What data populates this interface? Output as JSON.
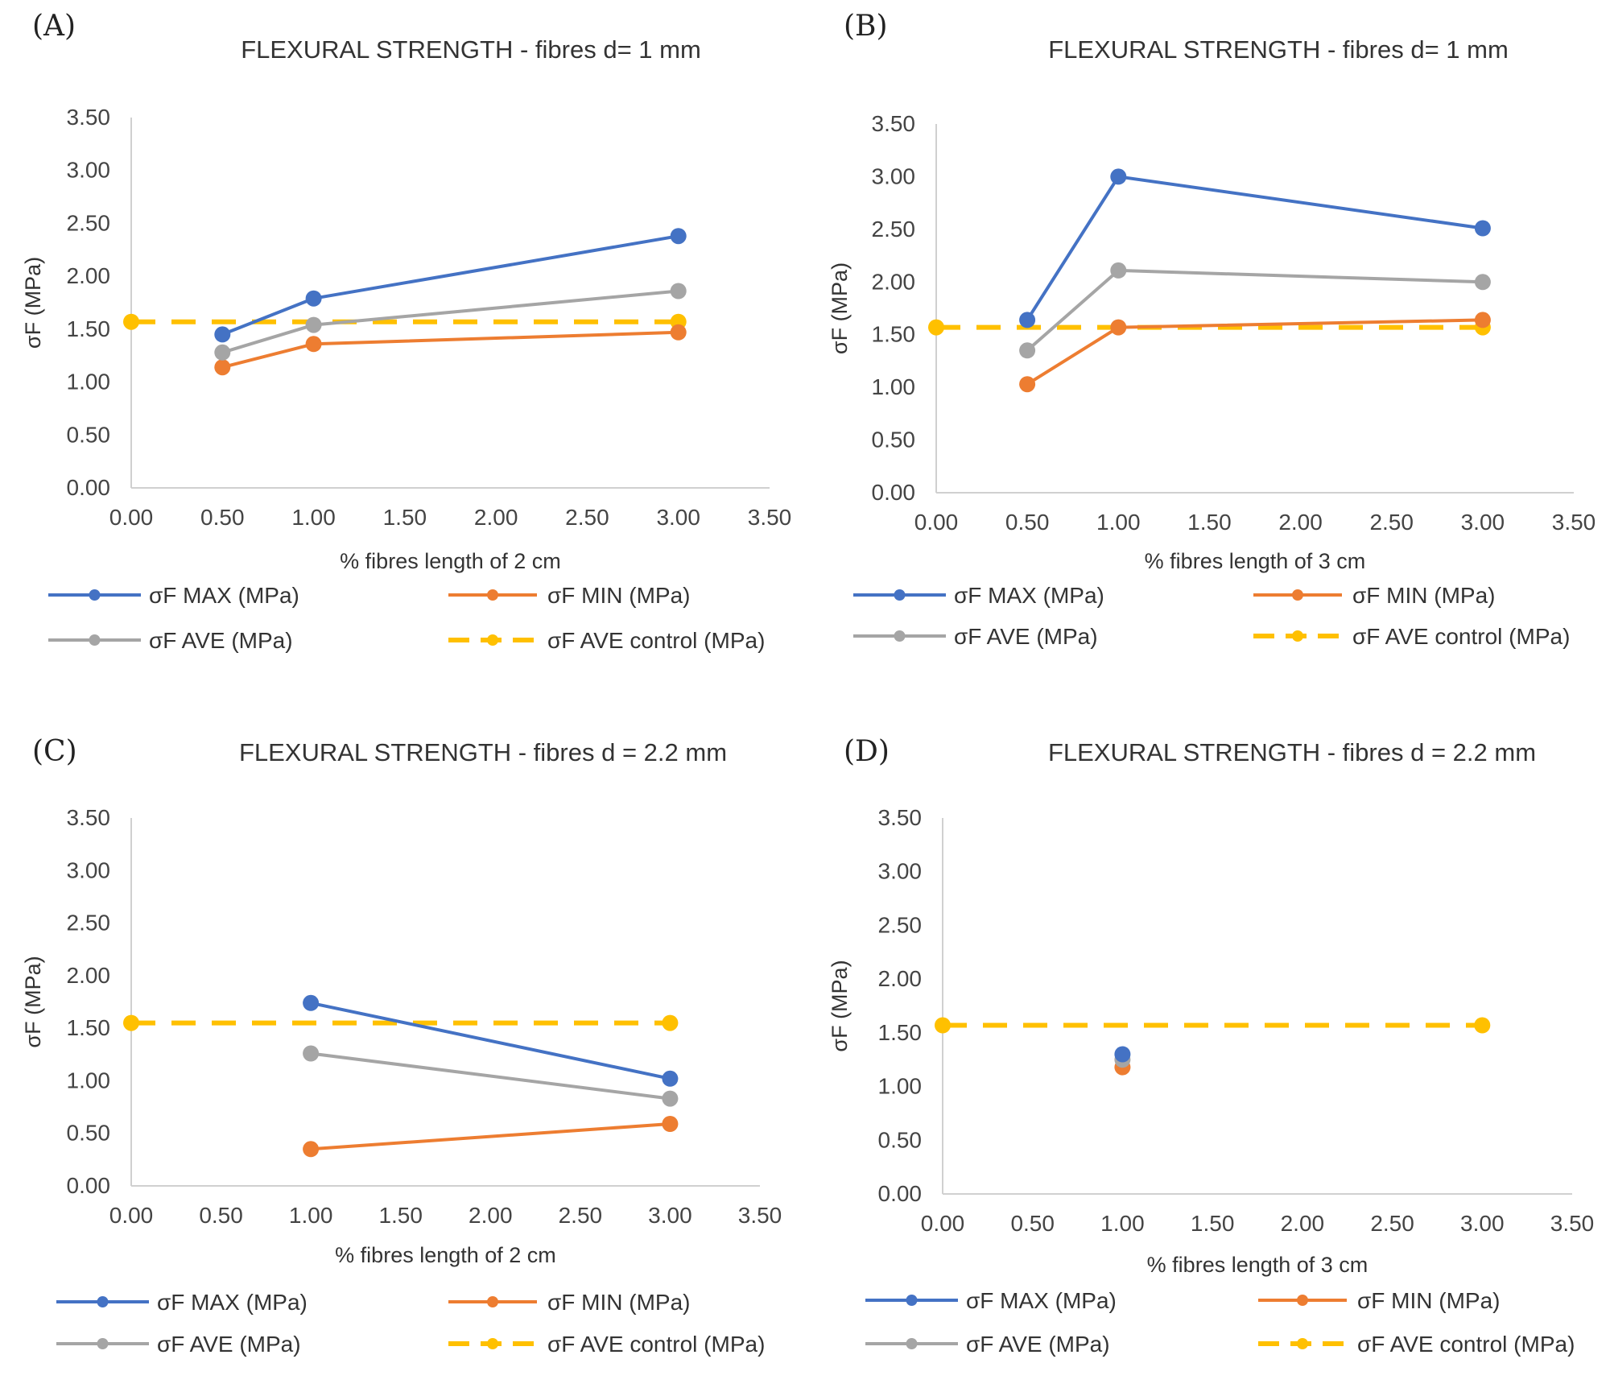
{
  "figure": {
    "background": "#ffffff"
  },
  "colors": {
    "max": "#4472C4",
    "min": "#ED7D31",
    "ave": "#A5A5A5",
    "control": "#FFC000"
  },
  "chart_data": [
    {
      "panel": "(A)",
      "type": "line",
      "title": "FLEXURAL STRENGTH  - fibres d= 1 mm",
      "xlabel": "% fibres length of 2 cm",
      "ylabel": "σF (MPa)",
      "xlim": [
        0,
        3.5
      ],
      "ylim": [
        0,
        3.5
      ],
      "xticks": [
        "0.00",
        "0.50",
        "1.00",
        "1.50",
        "2.00",
        "2.50",
        "3.00",
        "3.50"
      ],
      "yticks": [
        "0.00",
        "0.50",
        "1.00",
        "1.50",
        "2.00",
        "2.50",
        "3.00",
        "3.50"
      ],
      "series": [
        {
          "name": "σF MAX (MPa)",
          "key": "max",
          "style": "solid",
          "x": [
            0.5,
            1.0,
            3.0
          ],
          "y": [
            1.45,
            1.79,
            2.38
          ]
        },
        {
          "name": "σF MIN (MPa)",
          "key": "min",
          "style": "solid",
          "x": [
            0.5,
            1.0,
            3.0
          ],
          "y": [
            1.14,
            1.36,
            1.47
          ]
        },
        {
          "name": "σF AVE (MPa)",
          "key": "ave",
          "style": "solid",
          "x": [
            0.5,
            1.0,
            3.0
          ],
          "y": [
            1.28,
            1.54,
            1.86
          ]
        },
        {
          "name": "σF AVE control (MPa)",
          "key": "control",
          "style": "dashed",
          "x": [
            0.0,
            3.0
          ],
          "y": [
            1.57,
            1.57
          ]
        }
      ]
    },
    {
      "panel": "(B)",
      "type": "line",
      "title": "FLEXURAL  STRENGTH - fibres d= 1 mm",
      "xlabel": "% fibres length of 3 cm",
      "ylabel": "σF (MPa)",
      "xlim": [
        0,
        3.5
      ],
      "ylim": [
        0,
        3.5
      ],
      "xticks": [
        "0.00",
        "0.50",
        "1.00",
        "1.50",
        "2.00",
        "2.50",
        "3.00",
        "3.50"
      ],
      "yticks": [
        "0.00",
        "0.50",
        "1.00",
        "1.50",
        "2.00",
        "2.50",
        "3.00",
        "3.50"
      ],
      "series": [
        {
          "name": "σF MAX (MPa)",
          "key": "max",
          "style": "solid",
          "x": [
            0.5,
            1.0,
            3.0
          ],
          "y": [
            1.64,
            3.0,
            2.51
          ]
        },
        {
          "name": "σF MIN (MPa)",
          "key": "min",
          "style": "solid",
          "x": [
            0.5,
            1.0,
            3.0
          ],
          "y": [
            1.03,
            1.57,
            1.64
          ]
        },
        {
          "name": "σF AVE (MPa)",
          "key": "ave",
          "style": "solid",
          "x": [
            0.5,
            1.0,
            3.0
          ],
          "y": [
            1.35,
            2.11,
            2.0
          ]
        },
        {
          "name": "σF AVE control (MPa)",
          "key": "control",
          "style": "dashed",
          "x": [
            0.0,
            3.0
          ],
          "y": [
            1.57,
            1.57
          ]
        }
      ]
    },
    {
      "panel": "(C)",
      "type": "line",
      "title": "FLEXURAL STRENGTH  - fibres d = 2.2 mm",
      "xlabel": "% fibres length of 2 cm",
      "ylabel": "σF (MPa)",
      "xlim": [
        0,
        3.5
      ],
      "ylim": [
        0,
        3.5
      ],
      "xticks": [
        "0.00",
        "0.50",
        "1.00",
        "1.50",
        "2.00",
        "2.50",
        "3.00",
        "3.50"
      ],
      "yticks": [
        "0.00",
        "0.50",
        "1.00",
        "1.50",
        "2.00",
        "2.50",
        "3.00",
        "3.50"
      ],
      "series": [
        {
          "name": "σF MAX (MPa)",
          "key": "max",
          "style": "solid",
          "x": [
            1.0,
            3.0
          ],
          "y": [
            1.74,
            1.02
          ]
        },
        {
          "name": "σF MIN (MPa)",
          "key": "min",
          "style": "solid",
          "x": [
            1.0,
            3.0
          ],
          "y": [
            0.35,
            0.59
          ]
        },
        {
          "name": "σF AVE (MPa)",
          "key": "ave",
          "style": "solid",
          "x": [
            1.0,
            3.0
          ],
          "y": [
            1.26,
            0.83
          ]
        },
        {
          "name": "σF AVE control (MPa)",
          "key": "control",
          "style": "dashed",
          "x": [
            0.0,
            3.0
          ],
          "y": [
            1.55,
            1.55
          ]
        }
      ]
    },
    {
      "panel": "(D)",
      "type": "line",
      "title": "FLEXURAL  STRENGTH - fibres d = 2.2 mm",
      "xlabel": "% fibres length of 3 cm",
      "ylabel": "σF (MPa)",
      "xlim": [
        0,
        3.5
      ],
      "ylim": [
        0,
        3.5
      ],
      "xticks": [
        "0.00",
        "0.50",
        "1.00",
        "1.50",
        "2.00",
        "2.50",
        "3.00",
        "3.50"
      ],
      "yticks": [
        "0.00",
        "0.50",
        "1.00",
        "1.50",
        "2.00",
        "2.50",
        "3.00",
        "3.50"
      ],
      "series": [
        {
          "name": "σF MAX (MPa)",
          "key": "max",
          "style": "solid",
          "x": [
            1.0
          ],
          "y": [
            1.3
          ]
        },
        {
          "name": "σF MIN (MPa)",
          "key": "min",
          "style": "solid",
          "x": [
            1.0
          ],
          "y": [
            1.18
          ]
        },
        {
          "name": "σF AVE (MPa)",
          "key": "ave",
          "style": "solid",
          "x": [
            1.0
          ],
          "y": [
            1.25
          ]
        },
        {
          "name": "σF AVE control (MPa)",
          "key": "control",
          "style": "dashed",
          "x": [
            0.0,
            3.0
          ],
          "y": [
            1.57,
            1.57
          ]
        }
      ]
    }
  ]
}
